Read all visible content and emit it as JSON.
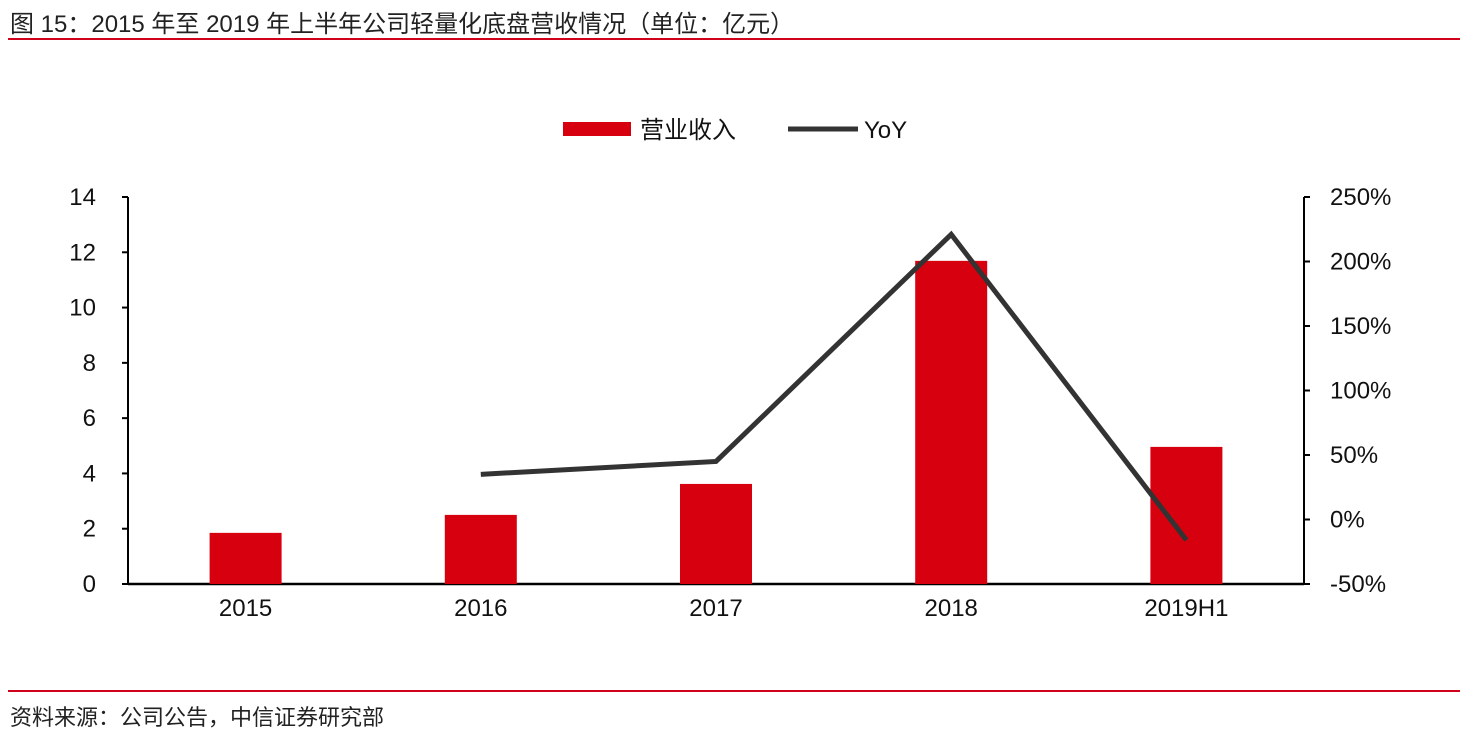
{
  "title": "图 15：2015 年至 2019 年上半年公司轻量化底盘营收情况（单位：亿元）",
  "source": "资料来源：公司公告，中信证券研究部",
  "chart_data": {
    "type": "bar+line",
    "categories": [
      "2015",
      "2016",
      "2017",
      "2018",
      "2019H1"
    ],
    "series": [
      {
        "name": "营业收入",
        "type": "bar",
        "axis": "left",
        "color": "#d7000f",
        "values": [
          1.85,
          2.5,
          3.62,
          11.69,
          4.96
        ]
      },
      {
        "name": "YoY",
        "type": "line",
        "axis": "right",
        "color": "#333333",
        "values": [
          null,
          35,
          45,
          221,
          -16
        ]
      }
    ],
    "left_axis": {
      "ylim": [
        0,
        14
      ],
      "ticks": [
        "0",
        "2",
        "4",
        "6",
        "8",
        "10",
        "12",
        "14"
      ]
    },
    "right_axis": {
      "ylim": [
        -50,
        250
      ],
      "ticks": [
        "-50%",
        "0%",
        "50%",
        "100%",
        "150%",
        "200%",
        "250%"
      ]
    },
    "legend": "top-center",
    "grid": false
  }
}
